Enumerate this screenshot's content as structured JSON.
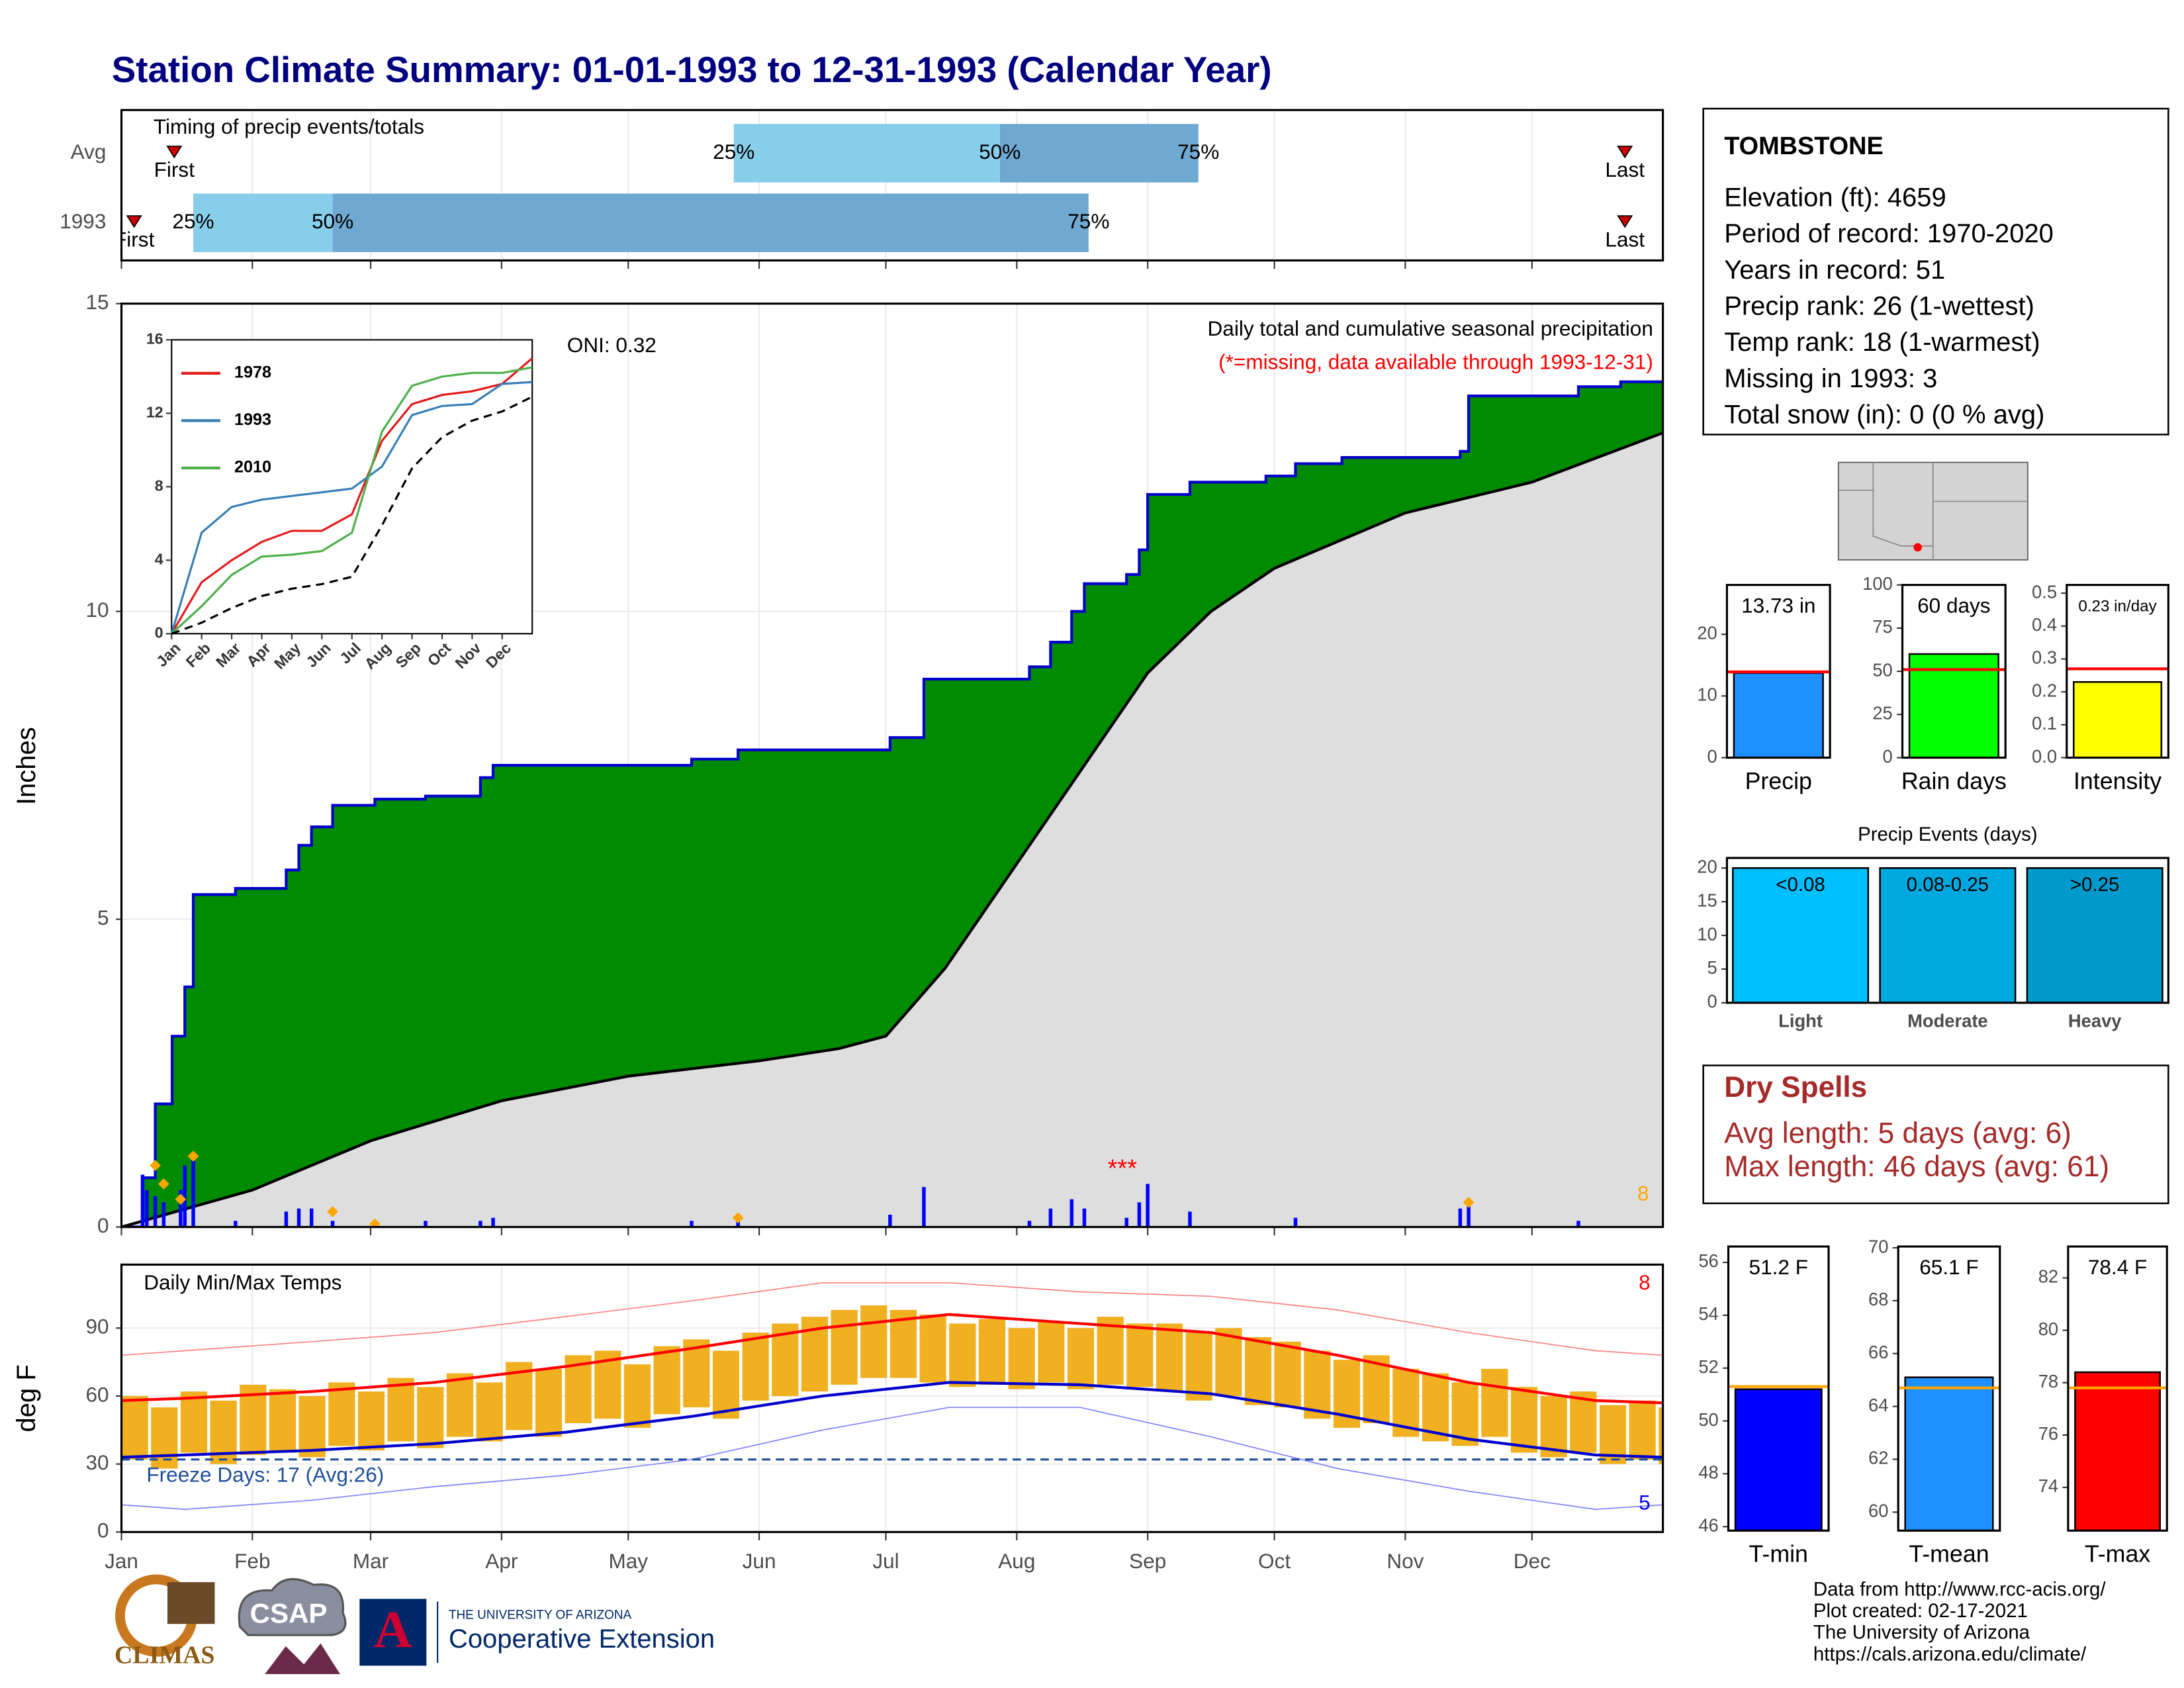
{
  "title": "Station Climate Summary: 01-01-1993 to 12-31-1993 (Calendar Year)",
  "chart_data": [
    {
      "type": "timing",
      "label": "Timing of precip events/totals",
      "xlim": [
        0,
        365
      ],
      "xticks": [
        0,
        31,
        59,
        90,
        120,
        151,
        181,
        212,
        243,
        273,
        304,
        334
      ],
      "marker_labels": {
        "first": "First",
        "p25": "25%",
        "p50": "50%",
        "p75": "75%",
        "last": "Last"
      },
      "colors": {
        "early": "#87ceeb",
        "late": "#6fa8d0",
        "marker": "#cc0000"
      },
      "rows": [
        {
          "name": "Avg",
          "first": 12.5,
          "p25": 145,
          "p50": 208,
          "p75": 255,
          "last": 356
        },
        {
          "name": "1993",
          "first": 3,
          "p25": 17,
          "p50": 50,
          "p75": 229,
          "last": 356
        }
      ]
    },
    {
      "type": "cumulative",
      "title": "Daily total and cumulative seasonal precipitation",
      "subtitle": "(*=missing, data available through 1993-12-31)",
      "annotation": "ONI: 0.32",
      "extreme_count": 8,
      "missing_marker": "***",
      "missing_x": 237,
      "ylabel": "Inches",
      "xlim": [
        0,
        365
      ],
      "xticks": [
        0,
        31,
        59,
        90,
        120,
        151,
        181,
        212,
        243,
        273,
        304,
        334
      ],
      "ylim": [
        0,
        15
      ],
      "yticks": [
        0,
        5,
        10,
        15
      ],
      "grid": true,
      "series": [
        {
          "color": "#0000cd",
          "fill": "#008b00",
          "step": true,
          "x": [
            0,
            5,
            8,
            12,
            15,
            17,
            27,
            39,
            42,
            45,
            50,
            60,
            72,
            85,
            88,
            135,
            146,
            182,
            190,
            215,
            220,
            225,
            228,
            238,
            241,
            243,
            253,
            271,
            278,
            289,
            317,
            319,
            345,
            355,
            365
          ],
          "values": [
            0,
            0.8,
            2.0,
            3.1,
            3.9,
            5.4,
            5.5,
            5.8,
            6.2,
            6.5,
            6.85,
            6.95,
            7.0,
            7.3,
            7.5,
            7.6,
            7.75,
            7.95,
            8.9,
            9.1,
            9.5,
            10.0,
            10.45,
            10.6,
            11.0,
            11.9,
            12.1,
            12.2,
            12.4,
            12.5,
            12.6,
            13.5,
            13.65,
            13.73,
            13.73
          ]
        },
        {
          "color": "#000000",
          "fill": "#dedede",
          "step": false,
          "x": [
            0,
            31,
            59,
            90,
            120,
            151,
            170,
            181,
            195,
            212,
            228,
            243,
            258,
            273,
            304,
            334,
            365
          ],
          "values": [
            0,
            0.6,
            1.4,
            2.05,
            2.45,
            2.7,
            2.9,
            3.1,
            4.2,
            5.9,
            7.5,
            9.0,
            10.0,
            10.7,
            11.6,
            12.1,
            12.9
          ]
        }
      ],
      "daily": {
        "color": "#0000ff",
        "x": [
          5,
          6,
          8,
          10,
          14,
          15,
          17,
          27,
          39,
          42,
          45,
          50,
          72,
          85,
          88,
          135,
          146,
          182,
          190,
          215,
          220,
          225,
          228,
          238,
          241,
          243,
          253,
          278,
          317,
          319,
          345
        ],
        "values": [
          0.85,
          0.6,
          0.5,
          0.4,
          0.6,
          1.0,
          1.15,
          0.1,
          0.25,
          0.3,
          0.3,
          0.1,
          0.1,
          0.1,
          0.15,
          0.1,
          0.15,
          0.2,
          0.65,
          0.1,
          0.3,
          0.45,
          0.3,
          0.15,
          0.4,
          0.7,
          0.25,
          0.15,
          0.3,
          0.45,
          0.1
        ]
      },
      "records": {
        "color": "#ffa500",
        "x": [
          8,
          10,
          14,
          17,
          50,
          60,
          146,
          319
        ],
        "values": [
          1.0,
          0.7,
          0.45,
          1.15,
          0.25,
          0.05,
          0.15,
          0.4
        ]
      }
    },
    {
      "type": "line",
      "x": [
        0,
        1,
        2,
        3,
        4,
        5,
        6,
        7,
        8,
        9,
        10,
        11,
        12
      ],
      "xlim": [
        0,
        12
      ],
      "xticks": [
        {
          "value": 0,
          "label": "Jan"
        },
        {
          "value": 1,
          "label": "Feb"
        },
        {
          "value": 2,
          "label": "Mar"
        },
        {
          "value": 3,
          "label": "Apr"
        },
        {
          "value": 4,
          "label": "May"
        },
        {
          "value": 5,
          "label": "Jun"
        },
        {
          "value": 6,
          "label": "Jul"
        },
        {
          "value": 7,
          "label": "Aug"
        },
        {
          "value": 8,
          "label": "Sep"
        },
        {
          "value": 9,
          "label": "Oct"
        },
        {
          "value": 10,
          "label": "Nov"
        },
        {
          "value": 11,
          "label": "Dec"
        }
      ],
      "ylim": [
        0,
        16
      ],
      "yticks": [
        0,
        4,
        8,
        12,
        16
      ],
      "series": [
        {
          "name": "1978",
          "color": "#e41a1c",
          "values": [
            0,
            2.8,
            4.0,
            5.0,
            5.6,
            5.6,
            6.5,
            10.5,
            12.5,
            13.0,
            13.2,
            13.6,
            15.0
          ]
        },
        {
          "name": "1993",
          "color": "#377eb8",
          "values": [
            0,
            5.5,
            6.9,
            7.3,
            7.5,
            7.7,
            7.9,
            9.1,
            11.9,
            12.4,
            12.5,
            13.6,
            13.7
          ]
        },
        {
          "name": "2010",
          "color": "#4daf4a",
          "values": [
            0,
            1.5,
            3.2,
            4.2,
            4.3,
            4.5,
            5.5,
            11.0,
            13.5,
            14.0,
            14.2,
            14.2,
            14.5
          ]
        },
        {
          "color": "#000000",
          "dash": true,
          "values": [
            0,
            0.6,
            1.4,
            2.05,
            2.45,
            2.7,
            3.1,
            5.9,
            9.0,
            10.7,
            11.6,
            12.1,
            12.9
          ]
        }
      ]
    },
    {
      "type": "temps",
      "title": "Daily Min/Max Temps",
      "ylabel": "deg F",
      "annotation": "Freeze Days: 17 (Avg:26)",
      "hot_count": 8,
      "cold_count": 5,
      "freeze_line": 32,
      "xlim": [
        0,
        365
      ],
      "xticks": [
        {
          "value": 0,
          "label": "Jan"
        },
        {
          "value": 31,
          "label": "Feb"
        },
        {
          "value": 59,
          "label": "Mar"
        },
        {
          "value": 90,
          "label": "Apr"
        },
        {
          "value": 120,
          "label": "May"
        },
        {
          "value": 151,
          "label": "Jun"
        },
        {
          "value": 181,
          "label": "Jul"
        },
        {
          "value": 212,
          "label": "Aug"
        },
        {
          "value": 243,
          "label": "Sep"
        },
        {
          "value": 273,
          "label": "Oct"
        },
        {
          "value": 304,
          "label": "Nov"
        },
        {
          "value": 334,
          "label": "Dec"
        }
      ],
      "ylim": [
        0,
        118
      ],
      "yticks": [
        0,
        30,
        60,
        90
      ],
      "grid": true,
      "daily": {
        "color": "#f0b020",
        "x": [
          0,
          7,
          14,
          21,
          28,
          35,
          42,
          49,
          56,
          63,
          70,
          77,
          84,
          91,
          98,
          105,
          112,
          119,
          126,
          133,
          140,
          147,
          154,
          161,
          168,
          175,
          182,
          189,
          196,
          203,
          210,
          217,
          224,
          231,
          238,
          245,
          252,
          259,
          266,
          273,
          280,
          287,
          294,
          301,
          308,
          315,
          322,
          329,
          336,
          343,
          350,
          357,
          364
        ],
        "tmax": [
          60,
          55,
          62,
          58,
          65,
          63,
          60,
          66,
          62,
          68,
          64,
          70,
          66,
          75,
          72,
          78,
          80,
          74,
          82,
          85,
          80,
          88,
          92,
          95,
          98,
          100,
          98,
          96,
          92,
          94,
          90,
          93,
          90,
          95,
          92,
          92,
          88,
          90,
          86,
          84,
          80,
          76,
          78,
          72,
          70,
          66,
          72,
          64,
          60,
          62,
          56,
          58,
          55
        ],
        "tmin": [
          32,
          28,
          35,
          30,
          34,
          35,
          33,
          38,
          36,
          40,
          37,
          42,
          40,
          45,
          42,
          48,
          50,
          46,
          52,
          55,
          50,
          58,
          60,
          62,
          65,
          68,
          68,
          66,
          64,
          65,
          63,
          66,
          63,
          65,
          64,
          62,
          58,
          60,
          56,
          55,
          50,
          46,
          48,
          42,
          40,
          38,
          42,
          35,
          33,
          35,
          30,
          32,
          30
        ]
      },
      "series": [
        {
          "color": "#ff8080",
          "width": 0.8,
          "x": [
            0,
            15,
            45,
            74,
            105,
            135,
            166,
            196,
            227,
            258,
            288,
            319,
            349,
            365
          ],
          "values": [
            78,
            80,
            84,
            88,
            95,
            102,
            110,
            110,
            106,
            104,
            98,
            88,
            80,
            78
          ]
        },
        {
          "color": "#8080ff",
          "width": 0.8,
          "x": [
            0,
            15,
            45,
            74,
            105,
            135,
            166,
            196,
            227,
            258,
            288,
            319,
            349,
            365
          ],
          "values": [
            12,
            10,
            14,
            20,
            25,
            32,
            45,
            55,
            55,
            42,
            28,
            18,
            10,
            12
          ]
        },
        {
          "color": "#ff0000",
          "width": 2,
          "x": [
            0,
            15,
            45,
            74,
            105,
            135,
            166,
            196,
            227,
            258,
            288,
            319,
            349,
            365
          ],
          "values": [
            58,
            59,
            62,
            66,
            73,
            81,
            90,
            96,
            92,
            88,
            78,
            66,
            58,
            57
          ]
        },
        {
          "color": "#0000cd",
          "width": 2,
          "x": [
            0,
            15,
            45,
            74,
            105,
            135,
            166,
            196,
            227,
            258,
            288,
            319,
            349,
            365
          ],
          "values": [
            33,
            34,
            36,
            39,
            44,
            51,
            60,
            66,
            65,
            61,
            52,
            41,
            34,
            33
          ]
        }
      ]
    },
    {
      "type": "single_bar",
      "categories": [
        "Precip"
      ],
      "values": [
        13.73
      ],
      "value_labels": [
        "13.73 in"
      ],
      "average": 13.9,
      "avg_color": "#ff0000",
      "color": "#1e90ff",
      "ylim": [
        0,
        28
      ],
      "yticks": [
        0,
        10,
        20
      ]
    },
    {
      "type": "single_bar",
      "categories": [
        "Rain days"
      ],
      "values": [
        60
      ],
      "value_labels": [
        "60 days"
      ],
      "average": 51,
      "avg_color": "#ff0000",
      "color": "#00ff00",
      "ylim": [
        0,
        100
      ],
      "yticks": [
        0,
        25,
        50,
        75,
        100
      ]
    },
    {
      "type": "single_bar",
      "categories": [
        "Intensity"
      ],
      "values": [
        0.23
      ],
      "value_labels": [
        "0.23 in/day"
      ],
      "average": 0.27,
      "avg_color": "#ff0000",
      "color": "#ffff00",
      "ylim": [
        0,
        0.525
      ],
      "yticks": [
        {
          "value": 0,
          "label": "0.0"
        },
        0.1,
        0.2,
        0.3,
        0.4,
        0.5
      ]
    },
    {
      "type": "events",
      "title": "Precip Events (days)",
      "categories": [
        "Light",
        "Moderate",
        "Heavy"
      ],
      "bin_labels": [
        "<0.08",
        "0.08-0.25",
        ">0.25"
      ],
      "values": [
        20,
        20,
        20
      ],
      "colors": [
        "#00bfff",
        "#00a8e0",
        "#0099cc"
      ],
      "ylim": [
        0,
        21.5
      ],
      "yticks": [
        0,
        5,
        10,
        15,
        20
      ]
    },
    {
      "type": "single_bar",
      "categories": [
        "T-min"
      ],
      "values": [
        51.2
      ],
      "value_labels": [
        "51.2 F"
      ],
      "average": 51.3,
      "avg_color": "#ffa500",
      "color": "#0000ff",
      "ylim": [
        45.85,
        56.6
      ],
      "yticks": [
        46,
        48,
        50,
        52,
        54,
        56
      ]
    },
    {
      "type": "single_bar",
      "categories": [
        "T-mean"
      ],
      "values": [
        65.1
      ],
      "value_labels": [
        "65.1 F"
      ],
      "average": 64.7,
      "avg_color": "#ffa500",
      "color": "#1e90ff",
      "ylim": [
        59.3,
        70.05
      ],
      "yticks": [
        60,
        62,
        64,
        66,
        68,
        70
      ]
    },
    {
      "type": "single_bar",
      "categories": [
        "T-max"
      ],
      "values": [
        78.4
      ],
      "value_labels": [
        "78.4 F"
      ],
      "average": 77.8,
      "avg_color": "#ffa500",
      "color": "#ff0000",
      "ylim": [
        72.35,
        83.2
      ],
      "yticks": [
        74,
        76,
        78,
        80,
        82
      ]
    }
  ],
  "station": {
    "name": "TOMBSTONE",
    "lines": [
      "Elevation (ft): 4659",
      "Period of record: 1970-2020",
      "Years in record: 51",
      "Precip rank: 26 (1-wettest)",
      "Temp rank: 18 (1-warmest)",
      "Missing in 1993: 3",
      "Total snow (in): 0 (0 % avg)"
    ]
  },
  "dry_spells": {
    "title": "Dry Spells",
    "lines": [
      "Avg length: 5 days (avg: 6)",
      "Max length: 46 days (avg: 61)"
    ]
  },
  "footer": {
    "credits": [
      "Data from http://www.rcc-acis.org/",
      "Plot created: 02-17-2021",
      "The University of Arizona",
      "https://cals.arizona.edu/climate/"
    ],
    "logos": [
      "CLIMAS",
      "CSAP",
      "THE UNIVERSITY OF ARIZONA",
      "Cooperative Extension"
    ]
  }
}
